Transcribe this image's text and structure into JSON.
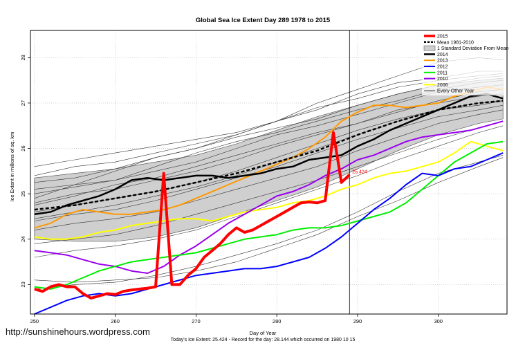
{
  "chart_data": {
    "type": "line",
    "title": "Global Sea Ice Extent Day 289 1978 to 2015",
    "xlabel": "Day of Year",
    "ylabel": "Ice Extent in millions of sq. km",
    "xlim": [
      249.5,
      308.5
    ],
    "ylim": [
      22.35,
      28.6
    ],
    "x_ticks": [
      250,
      260,
      270,
      280,
      290,
      300
    ],
    "y_ticks": [
      23,
      24,
      25,
      26,
      27,
      28
    ],
    "grid": true,
    "today_line_day": 289,
    "legend_position": "top-right",
    "today_label": "25.424",
    "caption": "Today's Ice Extent: 25.424  -  Record for the day: 28.144 which occurred on 1980 10 15",
    "std_band": {
      "label": "1 Standard Deviation From Mean",
      "x": [
        250,
        255,
        260,
        265,
        270,
        275,
        280,
        285,
        290,
        295,
        300,
        305,
        308
      ],
      "upper": [
        25.35,
        25.45,
        25.55,
        25.7,
        25.85,
        26.1,
        26.4,
        26.7,
        26.95,
        27.2,
        27.4,
        27.5,
        27.55
      ],
      "lower": [
        24.0,
        23.95,
        23.95,
        24.05,
        24.25,
        24.55,
        24.85,
        25.15,
        25.55,
        25.95,
        26.3,
        26.55,
        26.65
      ]
    },
    "series": [
      {
        "name": "2015",
        "color": "#ff0000",
        "width": 4,
        "x": [
          250,
          251,
          252,
          253,
          254,
          255,
          256,
          257,
          258,
          259,
          260,
          261,
          262,
          263,
          264,
          265,
          266,
          267,
          268,
          269,
          270,
          271,
          272,
          273,
          274,
          275,
          276,
          277,
          278,
          279,
          280,
          281,
          282,
          283,
          284,
          285,
          286,
          287,
          288,
          289
        ],
        "values": [
          22.9,
          22.85,
          22.95,
          23.0,
          22.95,
          22.95,
          22.8,
          22.7,
          22.75,
          22.8,
          22.78,
          22.85,
          22.88,
          22.9,
          22.92,
          22.95,
          25.45,
          23.0,
          23.0,
          23.2,
          23.35,
          23.6,
          23.75,
          23.9,
          24.1,
          24.25,
          24.15,
          24.2,
          24.3,
          24.4,
          24.5,
          24.6,
          24.7,
          24.8,
          24.82,
          24.8,
          24.85,
          26.35,
          25.25,
          25.42
        ]
      },
      {
        "name": "Mean 1981-2010",
        "color": "#000000",
        "width": 2.5,
        "dash": "5,3",
        "x": [
          250,
          255,
          260,
          265,
          270,
          275,
          280,
          285,
          290,
          295,
          300,
          305,
          308
        ],
        "values": [
          24.65,
          24.75,
          24.9,
          25.05,
          25.25,
          25.45,
          25.7,
          25.95,
          26.3,
          26.6,
          26.85,
          27.0,
          27.05
        ]
      },
      {
        "name": "2014",
        "color": "#000000",
        "width": 2.5,
        "x": [
          250,
          252,
          254,
          256,
          258,
          260,
          262,
          264,
          266,
          268,
          270,
          272,
          274,
          276,
          278,
          280,
          282,
          284,
          286,
          288,
          290,
          292,
          294,
          296,
          298,
          300,
          302,
          304,
          306,
          308
        ],
        "values": [
          24.55,
          24.6,
          24.75,
          24.85,
          24.95,
          25.1,
          25.3,
          25.35,
          25.3,
          25.35,
          25.4,
          25.4,
          25.35,
          25.4,
          25.45,
          25.55,
          25.6,
          25.75,
          25.8,
          25.85,
          26.05,
          26.2,
          26.4,
          26.55,
          26.7,
          26.85,
          27.0,
          27.15,
          27.2,
          27.1
        ]
      },
      {
        "name": "2013",
        "color": "#ff9900",
        "width": 2,
        "x": [
          250,
          252,
          254,
          256,
          258,
          260,
          262,
          264,
          266,
          268,
          270,
          272,
          274,
          276,
          278,
          280,
          282,
          284,
          286,
          288,
          290,
          292,
          294,
          296,
          298,
          300,
          302,
          304,
          306,
          308
        ],
        "values": [
          24.25,
          24.35,
          24.55,
          24.65,
          24.6,
          24.55,
          24.55,
          24.6,
          24.65,
          24.75,
          24.9,
          25.05,
          25.2,
          25.35,
          25.5,
          25.65,
          25.8,
          26.0,
          26.25,
          26.6,
          26.8,
          26.95,
          26.95,
          26.9,
          26.95,
          27.0,
          27.15,
          27.25,
          27.35,
          27.3
        ]
      },
      {
        "name": "2012",
        "color": "#0000ff",
        "width": 2,
        "x": [
          250,
          252,
          254,
          256,
          258,
          260,
          262,
          264,
          266,
          268,
          270,
          272,
          274,
          276,
          278,
          280,
          282,
          284,
          286,
          288,
          290,
          292,
          294,
          296,
          298,
          300,
          302,
          304,
          306,
          308
        ],
        "values": [
          22.35,
          22.5,
          22.65,
          22.75,
          22.8,
          22.75,
          22.8,
          22.9,
          23.0,
          23.1,
          23.2,
          23.25,
          23.3,
          23.35,
          23.35,
          23.4,
          23.5,
          23.6,
          23.8,
          24.05,
          24.35,
          24.65,
          24.9,
          25.2,
          25.45,
          25.4,
          25.55,
          25.6,
          25.75,
          25.9
        ]
      },
      {
        "name": "2011",
        "color": "#00ee00",
        "width": 2,
        "x": [
          250,
          252,
          254,
          256,
          258,
          260,
          262,
          264,
          266,
          268,
          270,
          272,
          274,
          276,
          278,
          280,
          282,
          284,
          286,
          288,
          290,
          292,
          294,
          296,
          298,
          300,
          302,
          304,
          306,
          308
        ],
        "values": [
          22.95,
          22.9,
          23.0,
          23.15,
          23.3,
          23.4,
          23.5,
          23.55,
          23.6,
          23.65,
          23.7,
          23.8,
          23.9,
          24.0,
          24.05,
          24.1,
          24.2,
          24.25,
          24.25,
          24.3,
          24.4,
          24.5,
          24.6,
          24.8,
          25.1,
          25.4,
          25.7,
          25.9,
          26.1,
          26.15
        ]
      },
      {
        "name": "2010",
        "color": "#9900ee",
        "width": 2,
        "x": [
          250,
          252,
          254,
          256,
          258,
          260,
          262,
          264,
          266,
          268,
          270,
          272,
          274,
          276,
          278,
          280,
          282,
          284,
          286,
          288,
          290,
          292,
          294,
          296,
          298,
          300,
          302,
          304,
          306,
          308
        ],
        "values": [
          23.75,
          23.7,
          23.65,
          23.55,
          23.45,
          23.4,
          23.3,
          23.25,
          23.4,
          23.65,
          23.85,
          24.1,
          24.35,
          24.55,
          24.75,
          24.95,
          25.05,
          25.2,
          25.4,
          25.55,
          25.75,
          25.85,
          26.0,
          26.15,
          26.25,
          26.3,
          26.35,
          26.4,
          26.5,
          26.6
        ]
      },
      {
        "name": "2006",
        "color": "#ffff00",
        "width": 2,
        "x": [
          250,
          252,
          254,
          256,
          258,
          260,
          262,
          264,
          266,
          268,
          270,
          272,
          274,
          276,
          278,
          280,
          282,
          284,
          286,
          288,
          290,
          292,
          294,
          296,
          298,
          300,
          302,
          304,
          306,
          308
        ],
        "values": [
          24.05,
          24.0,
          24.0,
          24.05,
          24.15,
          24.2,
          24.3,
          24.35,
          24.4,
          24.45,
          24.45,
          24.4,
          24.5,
          24.6,
          24.65,
          24.7,
          24.8,
          24.85,
          24.95,
          25.1,
          25.2,
          25.35,
          25.45,
          25.5,
          25.6,
          25.7,
          25.9,
          26.15,
          26.05,
          25.95
        ]
      },
      {
        "name": "Every Other Year",
        "color": "#222222",
        "width": 0.6,
        "in_legend": true,
        "x": [],
        "values": []
      }
    ],
    "background_years": [
      {
        "x": [
          250,
          255,
          260,
          265,
          270,
          275,
          280,
          285,
          290,
          295,
          300,
          305,
          308
        ],
        "values": [
          24.9,
          25.2,
          25.5,
          25.8,
          26.0,
          26.3,
          26.6,
          27.0,
          27.3,
          27.6,
          27.9,
          28.0,
          27.95
        ]
      },
      {
        "x": [
          250,
          255,
          260,
          265,
          270,
          275,
          280,
          285,
          290,
          295,
          300,
          305,
          308
        ],
        "values": [
          25.4,
          25.6,
          25.7,
          25.9,
          26.1,
          26.3,
          26.6,
          26.85,
          27.2,
          27.45,
          27.55,
          27.7,
          27.7
        ]
      },
      {
        "x": [
          250,
          255,
          260,
          265,
          270,
          275,
          280,
          285,
          290,
          295,
          300,
          305,
          308
        ],
        "values": [
          25.25,
          25.35,
          25.55,
          25.8,
          26.0,
          26.25,
          26.45,
          26.65,
          26.95,
          27.2,
          27.4,
          27.55,
          27.6
        ]
      },
      {
        "x": [
          250,
          255,
          260,
          265,
          270,
          275,
          280,
          285,
          290,
          295,
          300,
          305,
          308
        ],
        "values": [
          25.1,
          25.2,
          25.3,
          25.5,
          25.7,
          26.0,
          26.3,
          26.5,
          26.75,
          27.0,
          27.25,
          27.35,
          27.4
        ]
      },
      {
        "x": [
          250,
          255,
          260,
          265,
          270,
          275,
          280,
          285,
          290,
          295,
          300,
          305,
          308
        ],
        "values": [
          24.8,
          25.0,
          25.1,
          25.3,
          25.5,
          25.75,
          26.05,
          26.3,
          26.55,
          26.85,
          27.0,
          27.15,
          27.2
        ]
      },
      {
        "x": [
          250,
          255,
          260,
          265,
          270,
          275,
          280,
          285,
          290,
          295,
          300,
          305,
          308
        ],
        "values": [
          24.6,
          24.75,
          24.9,
          25.05,
          25.25,
          25.5,
          25.8,
          26.1,
          26.4,
          26.65,
          26.85,
          27.0,
          27.05
        ]
      },
      {
        "x": [
          250,
          255,
          260,
          265,
          270,
          275,
          280,
          285,
          290,
          295,
          300,
          305,
          308
        ],
        "values": [
          24.4,
          24.55,
          24.65,
          24.85,
          25.1,
          25.35,
          25.6,
          25.9,
          26.2,
          26.45,
          26.7,
          26.85,
          26.95
        ]
      },
      {
        "x": [
          250,
          255,
          260,
          265,
          270,
          275,
          280,
          285,
          290,
          295,
          300,
          305,
          308
        ],
        "values": [
          24.2,
          24.35,
          24.45,
          24.6,
          24.85,
          25.1,
          25.35,
          25.6,
          25.95,
          26.25,
          26.55,
          26.75,
          26.85
        ]
      },
      {
        "x": [
          250,
          255,
          260,
          265,
          270,
          275,
          280,
          285,
          290,
          295,
          300,
          305,
          308
        ],
        "values": [
          24.75,
          24.95,
          25.2,
          25.35,
          25.6,
          25.85,
          26.1,
          26.35,
          26.55,
          26.8,
          27.05,
          27.25,
          27.3
        ]
      },
      {
        "x": [
          250,
          255,
          260,
          265,
          270,
          275,
          280,
          285,
          290,
          295,
          300,
          305,
          308
        ],
        "values": [
          23.9,
          24.0,
          24.1,
          24.3,
          24.55,
          24.8,
          25.05,
          25.3,
          25.6,
          25.9,
          26.2,
          26.45,
          26.6
        ]
      },
      {
        "x": [
          250,
          255,
          260,
          265,
          270,
          275,
          280,
          285,
          290,
          295,
          300,
          305,
          308
        ],
        "values": [
          25.6,
          25.75,
          25.9,
          26.05,
          26.2,
          26.35,
          26.6,
          26.9,
          27.1,
          27.35,
          27.5,
          27.6,
          27.65
        ]
      },
      {
        "x": [
          250,
          255,
          260,
          265,
          270,
          275,
          280,
          285,
          290,
          295,
          300,
          305,
          308
        ],
        "values": [
          23.1,
          23.05,
          23.1,
          23.15,
          23.3,
          23.5,
          23.8,
          24.1,
          24.5,
          24.85,
          25.25,
          25.6,
          25.8
        ]
      },
      {
        "x": [
          250,
          255,
          260,
          265,
          270,
          275,
          280,
          285,
          290,
          295,
          300,
          305,
          308
        ],
        "values": [
          22.9,
          23.0,
          23.05,
          23.2,
          23.4,
          23.65,
          23.9,
          24.2,
          24.6,
          25.05,
          25.45,
          25.7,
          25.85
        ]
      },
      {
        "x": [
          250,
          255,
          260,
          265,
          270,
          275,
          280,
          285,
          290,
          295,
          300,
          305,
          308
        ],
        "values": [
          23.6,
          23.75,
          23.85,
          24.0,
          24.2,
          24.5,
          24.8,
          25.1,
          25.4,
          25.75,
          26.05,
          26.35,
          26.5
        ]
      },
      {
        "x": [
          250,
          255,
          260,
          265,
          270,
          275,
          280,
          285,
          290,
          295,
          300,
          305,
          308
        ],
        "values": [
          25.0,
          25.15,
          25.3,
          25.6,
          25.9,
          26.15,
          26.35,
          26.6,
          26.85,
          27.05,
          27.3,
          27.45,
          27.5
        ]
      },
      {
        "x": [
          250,
          255,
          260,
          265,
          270,
          275,
          280,
          285,
          290,
          295,
          300,
          305,
          308
        ],
        "values": [
          24.45,
          24.6,
          24.75,
          24.95,
          25.15,
          25.4,
          25.7,
          26.0,
          26.3,
          26.6,
          26.85,
          26.95,
          27.05
        ]
      }
    ]
  },
  "footer": {
    "url": "http://sunshinehours.wordpress.com"
  }
}
